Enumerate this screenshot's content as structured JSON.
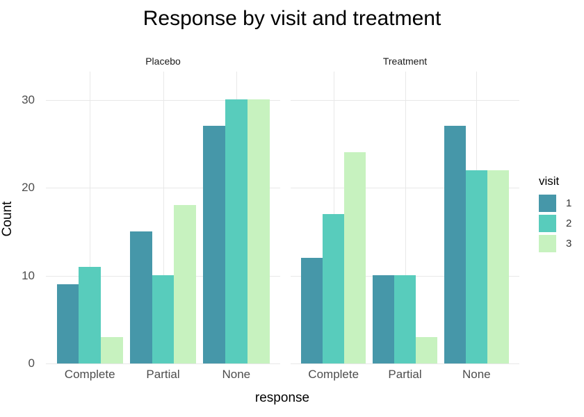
{
  "chart_data": {
    "type": "bar",
    "title": "Response by visit and treatment",
    "xlabel": "response",
    "ylabel": "Count",
    "y_ticks": [
      0,
      10,
      20,
      30
    ],
    "ylim": [
      0,
      33.2
    ],
    "grid": "major horizontal and vertical, light gray, white background",
    "facets": [
      {
        "label": "Placebo",
        "categories": [
          "Complete",
          "Partial",
          "None"
        ],
        "series": [
          {
            "name": "1",
            "values": [
              9,
              15,
              27
            ]
          },
          {
            "name": "2",
            "values": [
              11,
              10,
              30
            ]
          },
          {
            "name": "3",
            "values": [
              3,
              18,
              30
            ]
          }
        ]
      },
      {
        "label": "Treatment",
        "categories": [
          "Complete",
          "Partial",
          "None"
        ],
        "series": [
          {
            "name": "1",
            "values": [
              12,
              10,
              27
            ]
          },
          {
            "name": "2",
            "values": [
              17,
              10,
              22
            ]
          },
          {
            "name": "3",
            "values": [
              24,
              3,
              22
            ]
          }
        ]
      }
    ],
    "legend": {
      "title": "visit",
      "entries": [
        "1",
        "2",
        "3"
      ],
      "position": "right"
    },
    "palette": [
      "#4697a9",
      "#58ccbc",
      "#c7f2bf"
    ],
    "grid_color": "#e8e8e8",
    "axis_text_color": "#4d4d4d"
  }
}
